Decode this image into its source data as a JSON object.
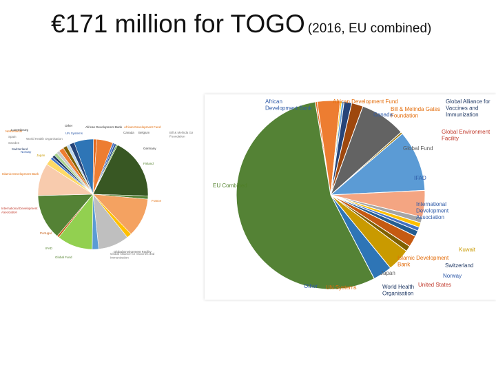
{
  "slide": {
    "title": "€171 million for TOGO",
    "subtitle": "(2016, EU combined)"
  },
  "colors": {
    "label_blue": "#2e5aa8",
    "label_orange": "#e36c0a",
    "label_red": "#c0392b",
    "label_gray": "#595959",
    "label_green": "#4f7f28"
  },
  "chart_data": [
    {
      "type": "pie",
      "title": "",
      "slices": [
        {
          "label": "African Development Bank",
          "value": 0.5,
          "color": "#e56b1f",
          "label_color": "#2e5aa8"
        },
        {
          "label": "African Development Fund",
          "value": 6,
          "color": "#ed7d31",
          "label_color": "#e36c0a"
        },
        {
          "label": "Bill & Melinda Gates Foundation",
          "value": 0.4,
          "color": "#ffc000",
          "label_color": "#e36c0a"
        },
        {
          "label": "Canada",
          "value": 0.6,
          "color": "#5b9bd5",
          "label_color": "#2e5aa8"
        },
        {
          "label": "Global Alliance for Vaccines and Immunization",
          "value": 2,
          "color": "#264478",
          "label_color": "#1f3864"
        },
        {
          "label": "Global Environment Facility",
          "value": 3,
          "color": "#9e480e",
          "label_color": "#c0392b"
        },
        {
          "label": "Global Fund",
          "value": 12,
          "color": "#636363",
          "label_color": "#595959"
        },
        {
          "label": "IFAD",
          "value": 0.5,
          "color": "#997300",
          "label_color": "#2e5aa8"
        },
        {
          "label": "International Development Association",
          "value": 16,
          "color": "#5b9bd5",
          "label_color": "#2e5aa8"
        },
        {
          "label": "Islamic Development Bank",
          "value": 7,
          "color": "#f4a582",
          "label_color": "#e36c0a"
        },
        {
          "label": "Kuwait",
          "value": 1.5,
          "color": "#a5a5a5",
          "label_color": "#c99a00"
        },
        {
          "label": "Switzerland",
          "value": 1.2,
          "color": "#ffc000",
          "label_color": "#1f3864"
        },
        {
          "label": "Norway",
          "value": 1,
          "color": "#4472c4",
          "label_color": "#2e5aa8"
        },
        {
          "label": "Japan",
          "value": 1.5,
          "color": "#255e91",
          "label_color": "#595959"
        },
        {
          "label": "United States",
          "value": 3,
          "color": "#c55a11",
          "label_color": "#c0392b"
        },
        {
          "label": "World Health Organisation",
          "value": 1.5,
          "color": "#7f6000",
          "label_color": "#1f3864"
        },
        {
          "label": "UN Systems",
          "value": 6,
          "color": "#c99a00",
          "label_color": "#e36c0a"
        },
        {
          "label": "Other",
          "value": 5,
          "color": "#2e75b6",
          "label_color": "#2e5aa8"
        },
        {
          "label": "EU Combined",
          "value": 84,
          "color": "#548235",
          "label_color": "#4f7f28"
        }
      ]
    },
    {
      "type": "pie",
      "title": "",
      "slices": [
        {
          "label": "Other",
          "value": 6,
          "color": "#2e75b6",
          "label_color": "#333333"
        },
        {
          "label": "African Development Bank",
          "value": 1,
          "color": "#e56b1f",
          "label_color": "#333333"
        },
        {
          "label": "African Development Fund",
          "value": 5,
          "color": "#ed7d31",
          "label_color": "#e36c0a"
        },
        {
          "label": "Canada",
          "value": 0.6,
          "color": "#4472c4",
          "label_color": "#555555"
        },
        {
          "label": "Belgium",
          "value": 0.6,
          "color": "#2f5597",
          "label_color": "#555555"
        },
        {
          "label": "Bill & Melinda Gates Foundation",
          "value": 0.4,
          "color": "#70ad47",
          "label_color": "#777777"
        },
        {
          "label": "Germany",
          "value": 19,
          "color": "#385723",
          "label_color": "#333333"
        },
        {
          "label": "Finland",
          "value": 1,
          "color": "#548235",
          "label_color": "#4f7f28"
        },
        {
          "label": "France",
          "value": 12,
          "color": "#f4a261",
          "label_color": "#e36c0a"
        },
        {
          "label": "Global Alliance for Vaccines and Immunization",
          "value": 1.5,
          "color": "#ffc000",
          "label_color": "#777777"
        },
        {
          "label": "Global Environment Facility",
          "value": 9.5,
          "color": "#bfbfbf",
          "label_color": "#555555"
        },
        {
          "label": "Global Fund",
          "value": 2,
          "color": "#5b9bd5",
          "label_color": "#4f7f28"
        },
        {
          "label": "IFAD",
          "value": 11,
          "color": "#92d050",
          "label_color": "#4f7f28"
        },
        {
          "label": "Portugal",
          "value": 0.6,
          "color": "#c55a11",
          "label_color": "#c55a11"
        },
        {
          "label": "International Development Association",
          "value": 14,
          "color": "#548235",
          "label_color": "#c0392b"
        },
        {
          "label": "Islamic Development Bank",
          "value": 10,
          "color": "#f8cbad",
          "label_color": "#e36c0a"
        },
        {
          "label": "Japan",
          "value": 2,
          "color": "#ffd966",
          "label_color": "#c99a00"
        },
        {
          "label": "Norway",
          "value": 0.8,
          "color": "#4472c4",
          "label_color": "#2e5aa8"
        },
        {
          "label": "Switzerland",
          "value": 0.8,
          "color": "#203864",
          "label_color": "#203864"
        },
        {
          "label": "Sweden",
          "value": 1,
          "color": "#a9d18e",
          "label_color": "#777777"
        },
        {
          "label": "Spain",
          "value": 1,
          "color": "#c9c9c9",
          "label_color": "#777777"
        },
        {
          "label": "Netherlands",
          "value": 1.5,
          "color": "#ed7d31",
          "label_color": "#e36c0a"
        },
        {
          "label": "World Health Organisation",
          "value": 1.2,
          "color": "#7f6000",
          "label_color": "#777777"
        },
        {
          "label": "Luxembourg",
          "value": 1,
          "color": "#bdd7ee",
          "label_color": "#333333"
        },
        {
          "label": "UN Systems",
          "value": 1.5,
          "color": "#264478",
          "label_color": "#2e5aa8"
        }
      ]
    }
  ]
}
